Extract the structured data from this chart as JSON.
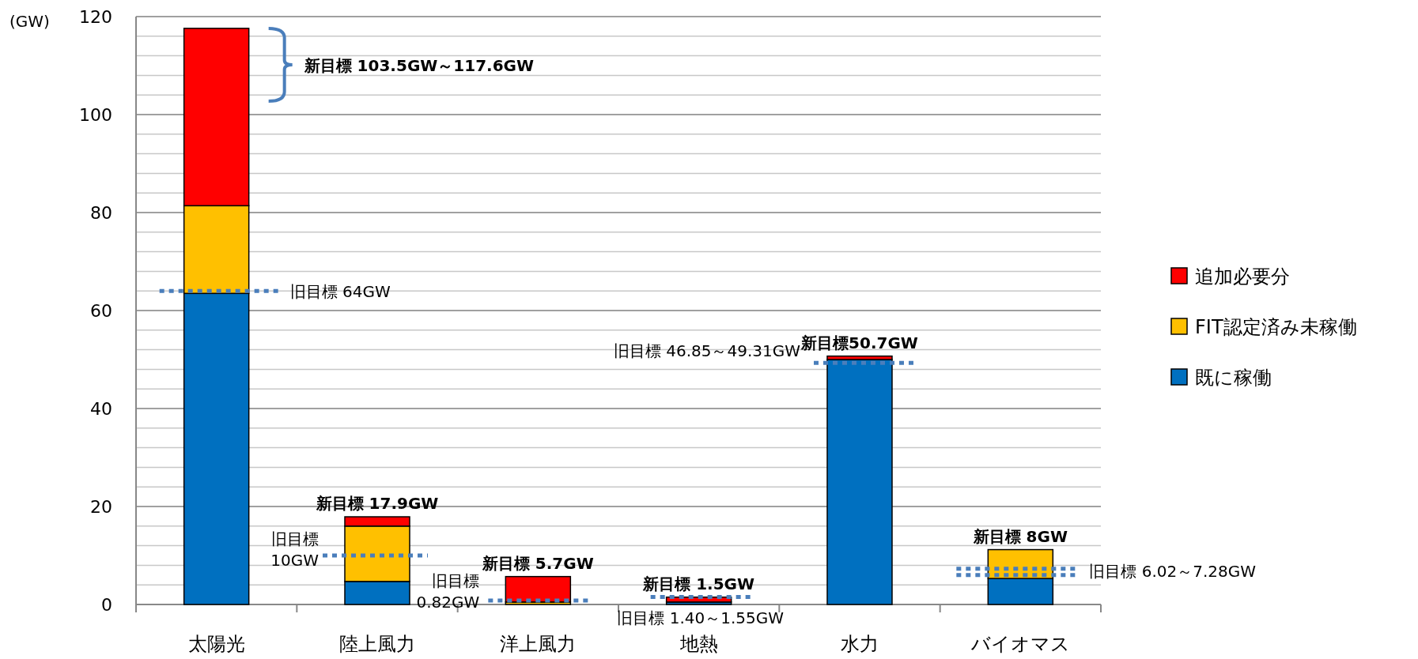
{
  "chart_data": {
    "type": "bar",
    "stacked": true,
    "ylabel": "(GW)",
    "categories": [
      "太陽光",
      "陸上風力",
      "洋上風力",
      "地熱",
      "水力",
      "バイオマス"
    ],
    "series": [
      {
        "name": "既に稼働",
        "color": "#0070c0",
        "values": [
          63.5,
          4.7,
          0,
          0.5,
          50.0,
          5.3
        ]
      },
      {
        "name": "FIT認定済み未稼働",
        "color": "#ffc000",
        "values": [
          17.9,
          11.3,
          0.5,
          0,
          0,
          5.9
        ]
      },
      {
        "name": "追加必要分",
        "color": "#ff0000",
        "values": [
          36.2,
          1.9,
          5.2,
          1.0,
          0.7,
          0
        ]
      }
    ],
    "ylim": [
      0,
      120
    ],
    "yticks": [
      0,
      {
        "value": 4,
        "label": null
      },
      {
        "value": 8,
        "label": null
      },
      {
        "value": 12,
        "label": null
      },
      {
        "value": 16,
        "label": null
      },
      20,
      {
        "value": 24,
        "label": null
      },
      {
        "value": 28,
        "label": null
      },
      {
        "value": 32,
        "label": null
      },
      {
        "value": 36,
        "label": null
      },
      40,
      {
        "value": 44,
        "label": null
      },
      {
        "value": 48,
        "label": null
      },
      {
        "value": 52,
        "label": null
      },
      {
        "value": 56,
        "label": null
      },
      60,
      {
        "value": 64,
        "label": null
      },
      {
        "value": 68,
        "label": null
      },
      {
        "value": 72,
        "label": null
      },
      {
        "value": 76,
        "label": null
      },
      80,
      {
        "value": 84,
        "label": null
      },
      {
        "value": 88,
        "label": null
      },
      {
        "value": 92,
        "label": null
      },
      {
        "value": 96,
        "label": null
      },
      100,
      {
        "value": 104,
        "label": null
      },
      {
        "value": 108,
        "label": null
      },
      {
        "value": 112,
        "label": null
      },
      {
        "value": 116,
        "label": null
      },
      120
    ],
    "grid": "y",
    "legend": "right",
    "ref_lines": [
      {
        "axis": "y",
        "value": 64,
        "label": "旧目標 64GW",
        "color": "#4a7ebb",
        "line_style": "dotted"
      },
      {
        "axis": "y",
        "value": 10,
        "label": "旧目標\n10GW",
        "color": "#4a7ebb",
        "line_style": "dotted"
      },
      {
        "axis": "y",
        "value": 0.82,
        "label": "旧目標\n0.82GW",
        "color": "#4a7ebb",
        "line_style": "dotted"
      },
      {
        "axis": "y",
        "value": 1.55,
        "label": "旧目標 1.40～1.55GW",
        "color": "#4a7ebb",
        "line_style": "dotted"
      },
      {
        "axis": "y",
        "value": 49.31,
        "label": "旧目標 46.85～49.31GW",
        "color": "#4a7ebb",
        "line_style": "dotted"
      },
      {
        "axis": "y",
        "value": 7.28,
        "label": "旧目標 6.02～7.28GW",
        "color": "#4a7ebb",
        "line_style": "dotted"
      },
      {
        "axis": "y",
        "value": 6.02,
        "label": null,
        "color": "#4a7ebb",
        "line_style": "dotted"
      }
    ],
    "annotations": [
      "新目標 103.5GW～117.6GW",
      {
        "text": "新目標 17.9GW",
        "x": "陸上風力",
        "y": 17.9
      },
      {
        "text": "新目標 5.7GW",
        "x": "洋上風力",
        "y": 5.7
      },
      {
        "text": "新目標 1.5GW",
        "x": "地熱",
        "y": 1.5
      },
      {
        "text": "新目標50.7GW",
        "x": "水力",
        "y": 50.7
      },
      {
        "text": "新目標 8GW",
        "x": "バイオマス",
        "y": 11.2
      }
    ]
  }
}
